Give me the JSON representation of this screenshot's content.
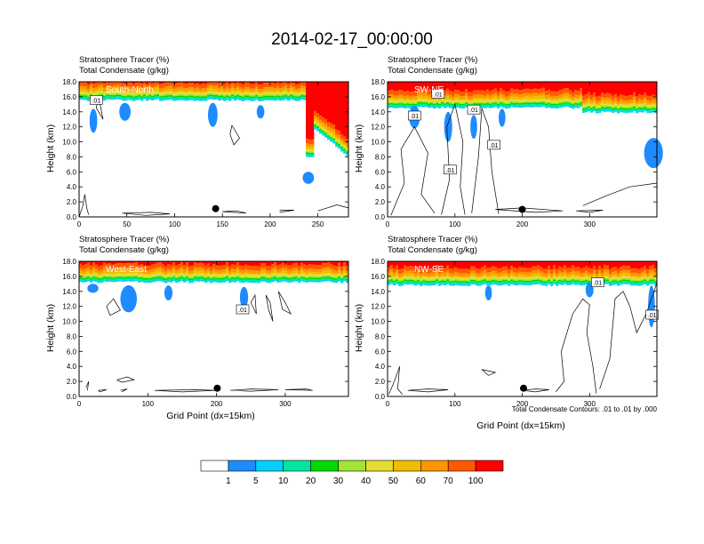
{
  "title": "2014-02-17_00:00:00",
  "colors": {
    "bins": [
      "#ffffff",
      "#1e8cff",
      "#00d2ff",
      "#00e6a0",
      "#00dc00",
      "#a0e632",
      "#e6dc32",
      "#f0be00",
      "#ff9600",
      "#ff5a00",
      "#ff0000"
    ],
    "contour": "#000000",
    "marker": "#000000"
  },
  "colorbar": {
    "labels": [
      "1",
      "5",
      "10",
      "20",
      "30",
      "40",
      "50",
      "60",
      "70",
      "100"
    ]
  },
  "footnote": "Total Condensate Contours: .01 to .01 by .000",
  "chart_data": [
    {
      "type": "heatmap",
      "panel_label": "South-North",
      "subtitle_1": "Stratosphere Tracer   (%)",
      "subtitle_2": "Total Condensate   (g/kg)",
      "ylabel": "Height (km)",
      "xlabel": "",
      "xlim": [
        0,
        282
      ],
      "ylim": [
        0,
        18
      ],
      "xticks": [
        0,
        50,
        100,
        150,
        200,
        250
      ],
      "yticks": [
        "0.0",
        "2.0",
        "4.0",
        "6.0",
        "8.0",
        "10.0",
        "12.0",
        "14.0",
        "16.0",
        "18.0"
      ],
      "marker": {
        "x": 143,
        "y": 1.1
      },
      "contour_labels": [
        {
          "text": ".01",
          "x": 18,
          "y": 15.6
        }
      ]
    },
    {
      "type": "heatmap",
      "panel_label": "SW-NE",
      "subtitle_1": "Stratosphere Tracer   (%)",
      "subtitle_2": "Total Condensate   (g/kg)",
      "ylabel": "Height (km)",
      "xlabel": "",
      "xlim": [
        0,
        400
      ],
      "ylim": [
        0,
        18
      ],
      "xticks": [
        0,
        100,
        200,
        300
      ],
      "yticks": [
        "0.0",
        "2.0",
        "4.0",
        "6.0",
        "8.0",
        "10.0",
        "12.0",
        "14.0",
        "16.0",
        "18.0"
      ],
      "marker": {
        "x": 200,
        "y": 1.0
      },
      "contour_labels": [
        {
          "text": ".01",
          "x": 40,
          "y": 13.5
        },
        {
          "text": ".01",
          "x": 75,
          "y": 16.4
        },
        {
          "text": ".01",
          "x": 128,
          "y": 14.3
        },
        {
          "text": ".01",
          "x": 158,
          "y": 9.6
        },
        {
          "text": ".01",
          "x": 93,
          "y": 6.3
        }
      ]
    },
    {
      "type": "heatmap",
      "panel_label": "West-East",
      "subtitle_1": "Stratosphere Tracer   (%)",
      "subtitle_2": "Total Condensate   (g/kg)",
      "ylabel": "Height (km)",
      "xlabel": "Grid Point (dx=15km)",
      "xlim": [
        0,
        392
      ],
      "ylim": [
        0,
        18
      ],
      "xticks": [
        0,
        100,
        200,
        300
      ],
      "yticks": [
        "0.0",
        "2.0",
        "4.0",
        "6.0",
        "8.0",
        "10.0",
        "12.0",
        "14.0",
        "16.0",
        "18.0"
      ],
      "marker": {
        "x": 201,
        "y": 1.1
      },
      "contour_labels": [
        {
          "text": ".01",
          "x": 238,
          "y": 11.6
        }
      ]
    },
    {
      "type": "heatmap",
      "panel_label": "NW-SE",
      "subtitle_1": "Stratosphere Tracer   (%)",
      "subtitle_2": "Total Condensate   (g/kg)",
      "ylabel": "Height (km)",
      "xlabel": "Grid Point (dx=15km)",
      "xlim": [
        0,
        400
      ],
      "ylim": [
        0,
        18
      ],
      "xticks": [
        0,
        100,
        200,
        300
      ],
      "yticks": [
        "0.0",
        "2.0",
        "4.0",
        "6.0",
        "8.0",
        "10.0",
        "12.0",
        "14.0",
        "16.0",
        "18.0"
      ],
      "marker": {
        "x": 202,
        "y": 1.1
      },
      "contour_labels": [
        {
          "text": ".01",
          "x": 312,
          "y": 15.2
        },
        {
          "text": ".01",
          "x": 393,
          "y": 10.9
        }
      ]
    }
  ]
}
